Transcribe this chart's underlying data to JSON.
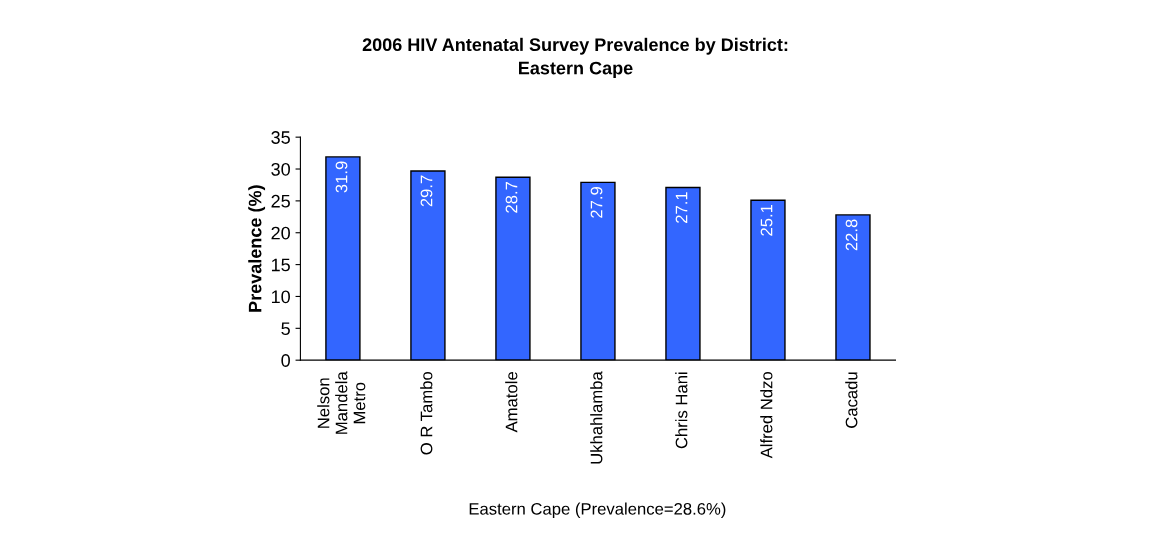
{
  "chart_data": {
    "type": "bar",
    "title": "2006 HIV Antenatal Survey Prevalence by District:\nEastern Cape",
    "ylabel": "Prevalence (%)",
    "categories": [
      "Nelson\nMandela\nMetro",
      "O R Tambo",
      "Amatole",
      "Ukhahlamba",
      "Chris Hani",
      "Alfred Ndzo",
      "Cacadu"
    ],
    "values": [
      31.9,
      29.7,
      28.7,
      27.9,
      27.1,
      25.1,
      22.8
    ],
    "color": "#3366ff",
    "ylim": [
      0,
      35
    ],
    "yticks": [
      0,
      5,
      10,
      15,
      20,
      25,
      30,
      35
    ],
    "grid": false,
    "data_labels": true,
    "annotations": [
      "Eastern Cape (Prevalence=28.6%)"
    ]
  }
}
